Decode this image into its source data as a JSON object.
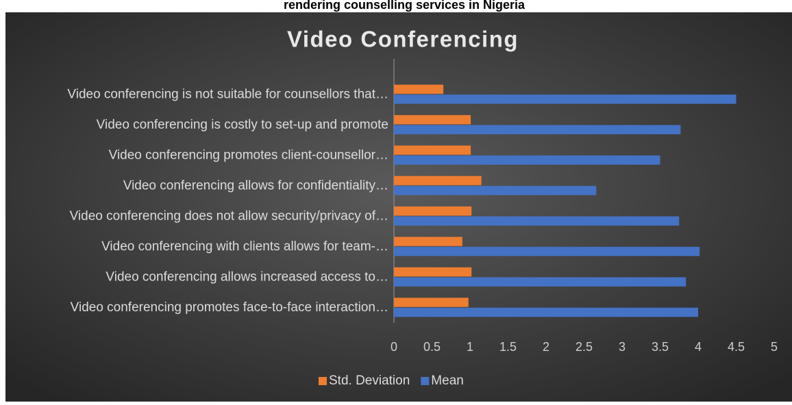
{
  "caption": "rendering counselling services in Nigeria",
  "chart_data": {
    "type": "bar",
    "orientation": "horizontal",
    "title": "Video Conferencing",
    "categories": [
      "Video conferencing is not suitable for counsellors that…",
      "Video conferencing is costly to set-up and promote",
      "Video conferencing promotes client-counsellor…",
      "Video conferencing allows for confidentiality…",
      "Video conferencing does not allow security/privacy of…",
      "Video conferencing with clients allows for team-…",
      "Video conferencing allows increased access to…",
      "Video conferencing promotes face-to-face interaction…"
    ],
    "series": [
      {
        "name": "Std. Deviation",
        "color": "#ed7d31",
        "values": [
          0.65,
          1.01,
          1.01,
          1.15,
          1.02,
          0.9,
          1.02,
          0.98
        ]
      },
      {
        "name": "Mean",
        "color": "#4472c4",
        "values": [
          4.5,
          3.77,
          3.5,
          2.66,
          3.75,
          4.02,
          3.84,
          4.0
        ]
      }
    ],
    "xlim": [
      0,
      5
    ],
    "xticks": [
      0,
      0.5,
      1,
      1.5,
      2,
      2.5,
      3,
      3.5,
      4,
      4.5,
      5
    ],
    "legend": "bottom"
  }
}
